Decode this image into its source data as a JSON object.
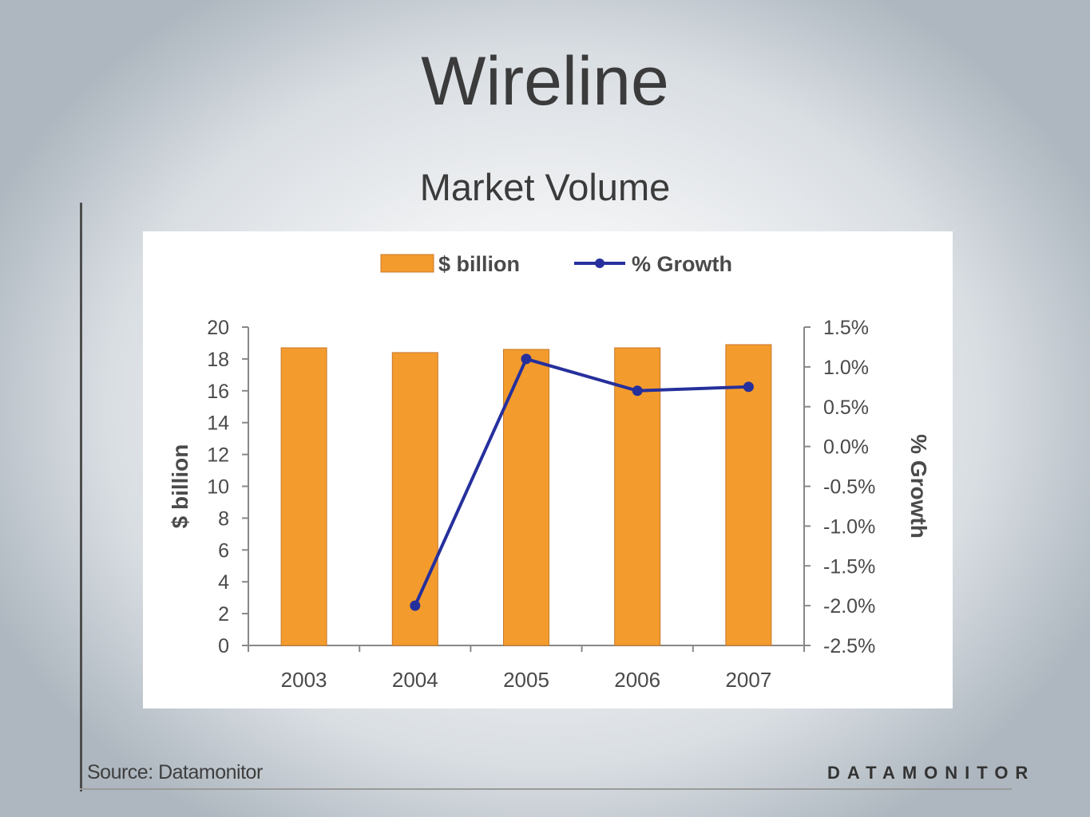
{
  "slide": {
    "title": "Wireline",
    "subtitle": "Market Volume",
    "source": "Source: Datamonitor",
    "brand": "DATAMONITOR"
  },
  "colors": {
    "bar": "#f39b2d",
    "bar_outline": "#c8792a",
    "line": "#26309c",
    "axis": "#888888",
    "text": "#4a4a4a"
  },
  "chart_data": {
    "type": "bar",
    "categories": [
      "2003",
      "2004",
      "2005",
      "2006",
      "2007"
    ],
    "series": [
      {
        "name": "$ billion",
        "type": "bar",
        "axis": "left",
        "values": [
          18.7,
          18.4,
          18.6,
          18.7,
          18.9
        ]
      },
      {
        "name": "% Growth",
        "type": "line",
        "axis": "right",
        "values": [
          null,
          -2.0,
          1.1,
          0.7,
          0.75
        ]
      }
    ],
    "ylabel": "$ billion",
    "y2label": "% Growth",
    "ylim": [
      0,
      20
    ],
    "y2lim": [
      -2.5,
      1.5
    ],
    "yticks": [
      "0",
      "2",
      "4",
      "6",
      "8",
      "10",
      "12",
      "14",
      "16",
      "18",
      "20"
    ],
    "y2ticks": [
      "-2.5%",
      "-2.0%",
      "-1.5%",
      "-1.0%",
      "-0.5%",
      "0.0%",
      "0.5%",
      "1.0%",
      "1.5%"
    ],
    "legend_position": "top",
    "grid": false
  }
}
